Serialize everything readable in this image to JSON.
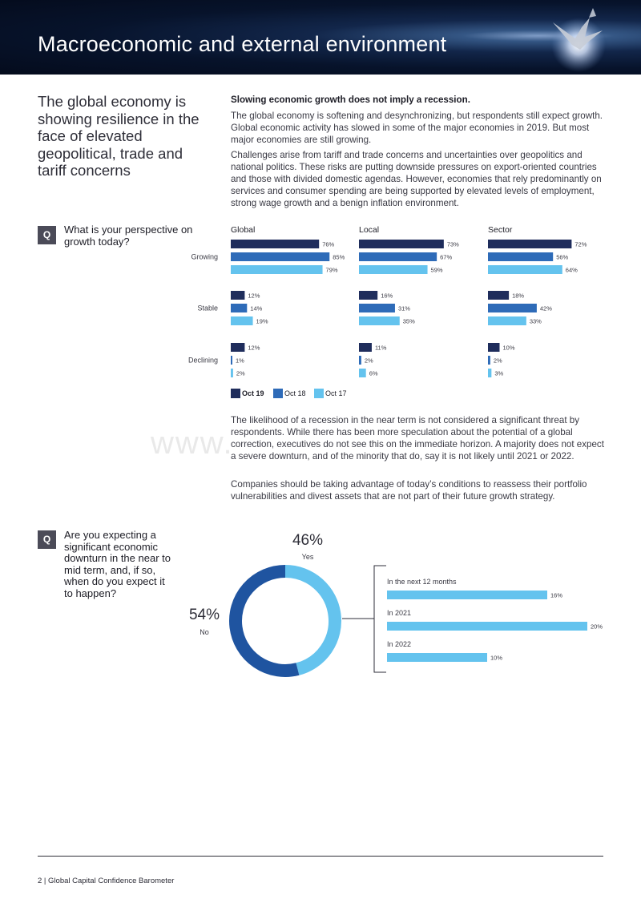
{
  "header": {
    "title": "Macroeconomic and external environment"
  },
  "intro": {
    "heading": "The global economy is showing resilience in the face of elevated geopolitical, trade and tariff concerns",
    "lead": "Slowing economic growth does not imply a recession.",
    "para1": "The global economy is softening and desynchronizing, but respondents still expect growth. Global economic activity has slowed in some of the major economies in 2019. But most major economies are still growing.",
    "para2": "Challenges arise from tariff and trade concerns and uncertainties over geopolitics and national politics. These risks are putting downside pressures on export-oriented countries and those with divided domestic agendas. However, economies that rely predominantly on services and consumer spending are being supported by elevated levels of employment, strong wage growth and a benign inflation environment."
  },
  "q_badge": "Q",
  "question1": "What is your perspective on growth today?",
  "question2": "Are you expecting a significant economic downturn in the near to mid term, and, if so, when do you expect it to happen?",
  "para3": "The likelihood of a recession in the near term is not considered a significant threat by respondents. While there has been more speculation about the potential of a global correction, executives do not see this on the immediate horizon. A majority does not expect a severe downturn, and of the minority that do, say it is not likely until 2021 or 2022.",
  "para4": "Companies should be taking advantage of today’s conditions to reassess their portfolio vulnerabilities and divest assets that are not part of their future growth strategy.",
  "watermark": "www.",
  "footer": "2  |  Global Capital Confidence Barometer",
  "colors": {
    "oct19": "#1f2d5c",
    "oct18": "#2e6bb8",
    "oct17": "#64c3ee",
    "no": "#1f54a0",
    "yes": "#64c3ee"
  },
  "chart_data": [
    {
      "type": "bar",
      "orientation": "horizontal",
      "panels": [
        "Global",
        "Local",
        "Sector"
      ],
      "categories": [
        "Growing",
        "Stable",
        "Declining"
      ],
      "series": [
        {
          "name": "Oct 19",
          "values": [
            [
              76,
              12,
              12
            ],
            [
              73,
              16,
              11
            ],
            [
              72,
              18,
              10
            ]
          ]
        },
        {
          "name": "Oct 18",
          "values": [
            [
              85,
              14,
              1
            ],
            [
              67,
              31,
              2
            ],
            [
              56,
              42,
              2
            ]
          ]
        },
        {
          "name": "Oct 17",
          "values": [
            [
              79,
              19,
              2
            ],
            [
              59,
              35,
              6
            ],
            [
              64,
              33,
              3
            ]
          ]
        }
      ],
      "unit": "%",
      "legend": "bottom-left"
    },
    {
      "type": "pie",
      "donut": true,
      "slices": [
        {
          "label": "Yes",
          "value": 46,
          "display": "46%"
        },
        {
          "label": "No",
          "value": 54,
          "display": "54%"
        }
      ]
    },
    {
      "type": "bar",
      "orientation": "horizontal",
      "categories": [
        "In the next 12 months",
        "In 2021",
        "In 2022"
      ],
      "values": [
        16,
        20,
        10
      ],
      "unit": "%"
    }
  ]
}
